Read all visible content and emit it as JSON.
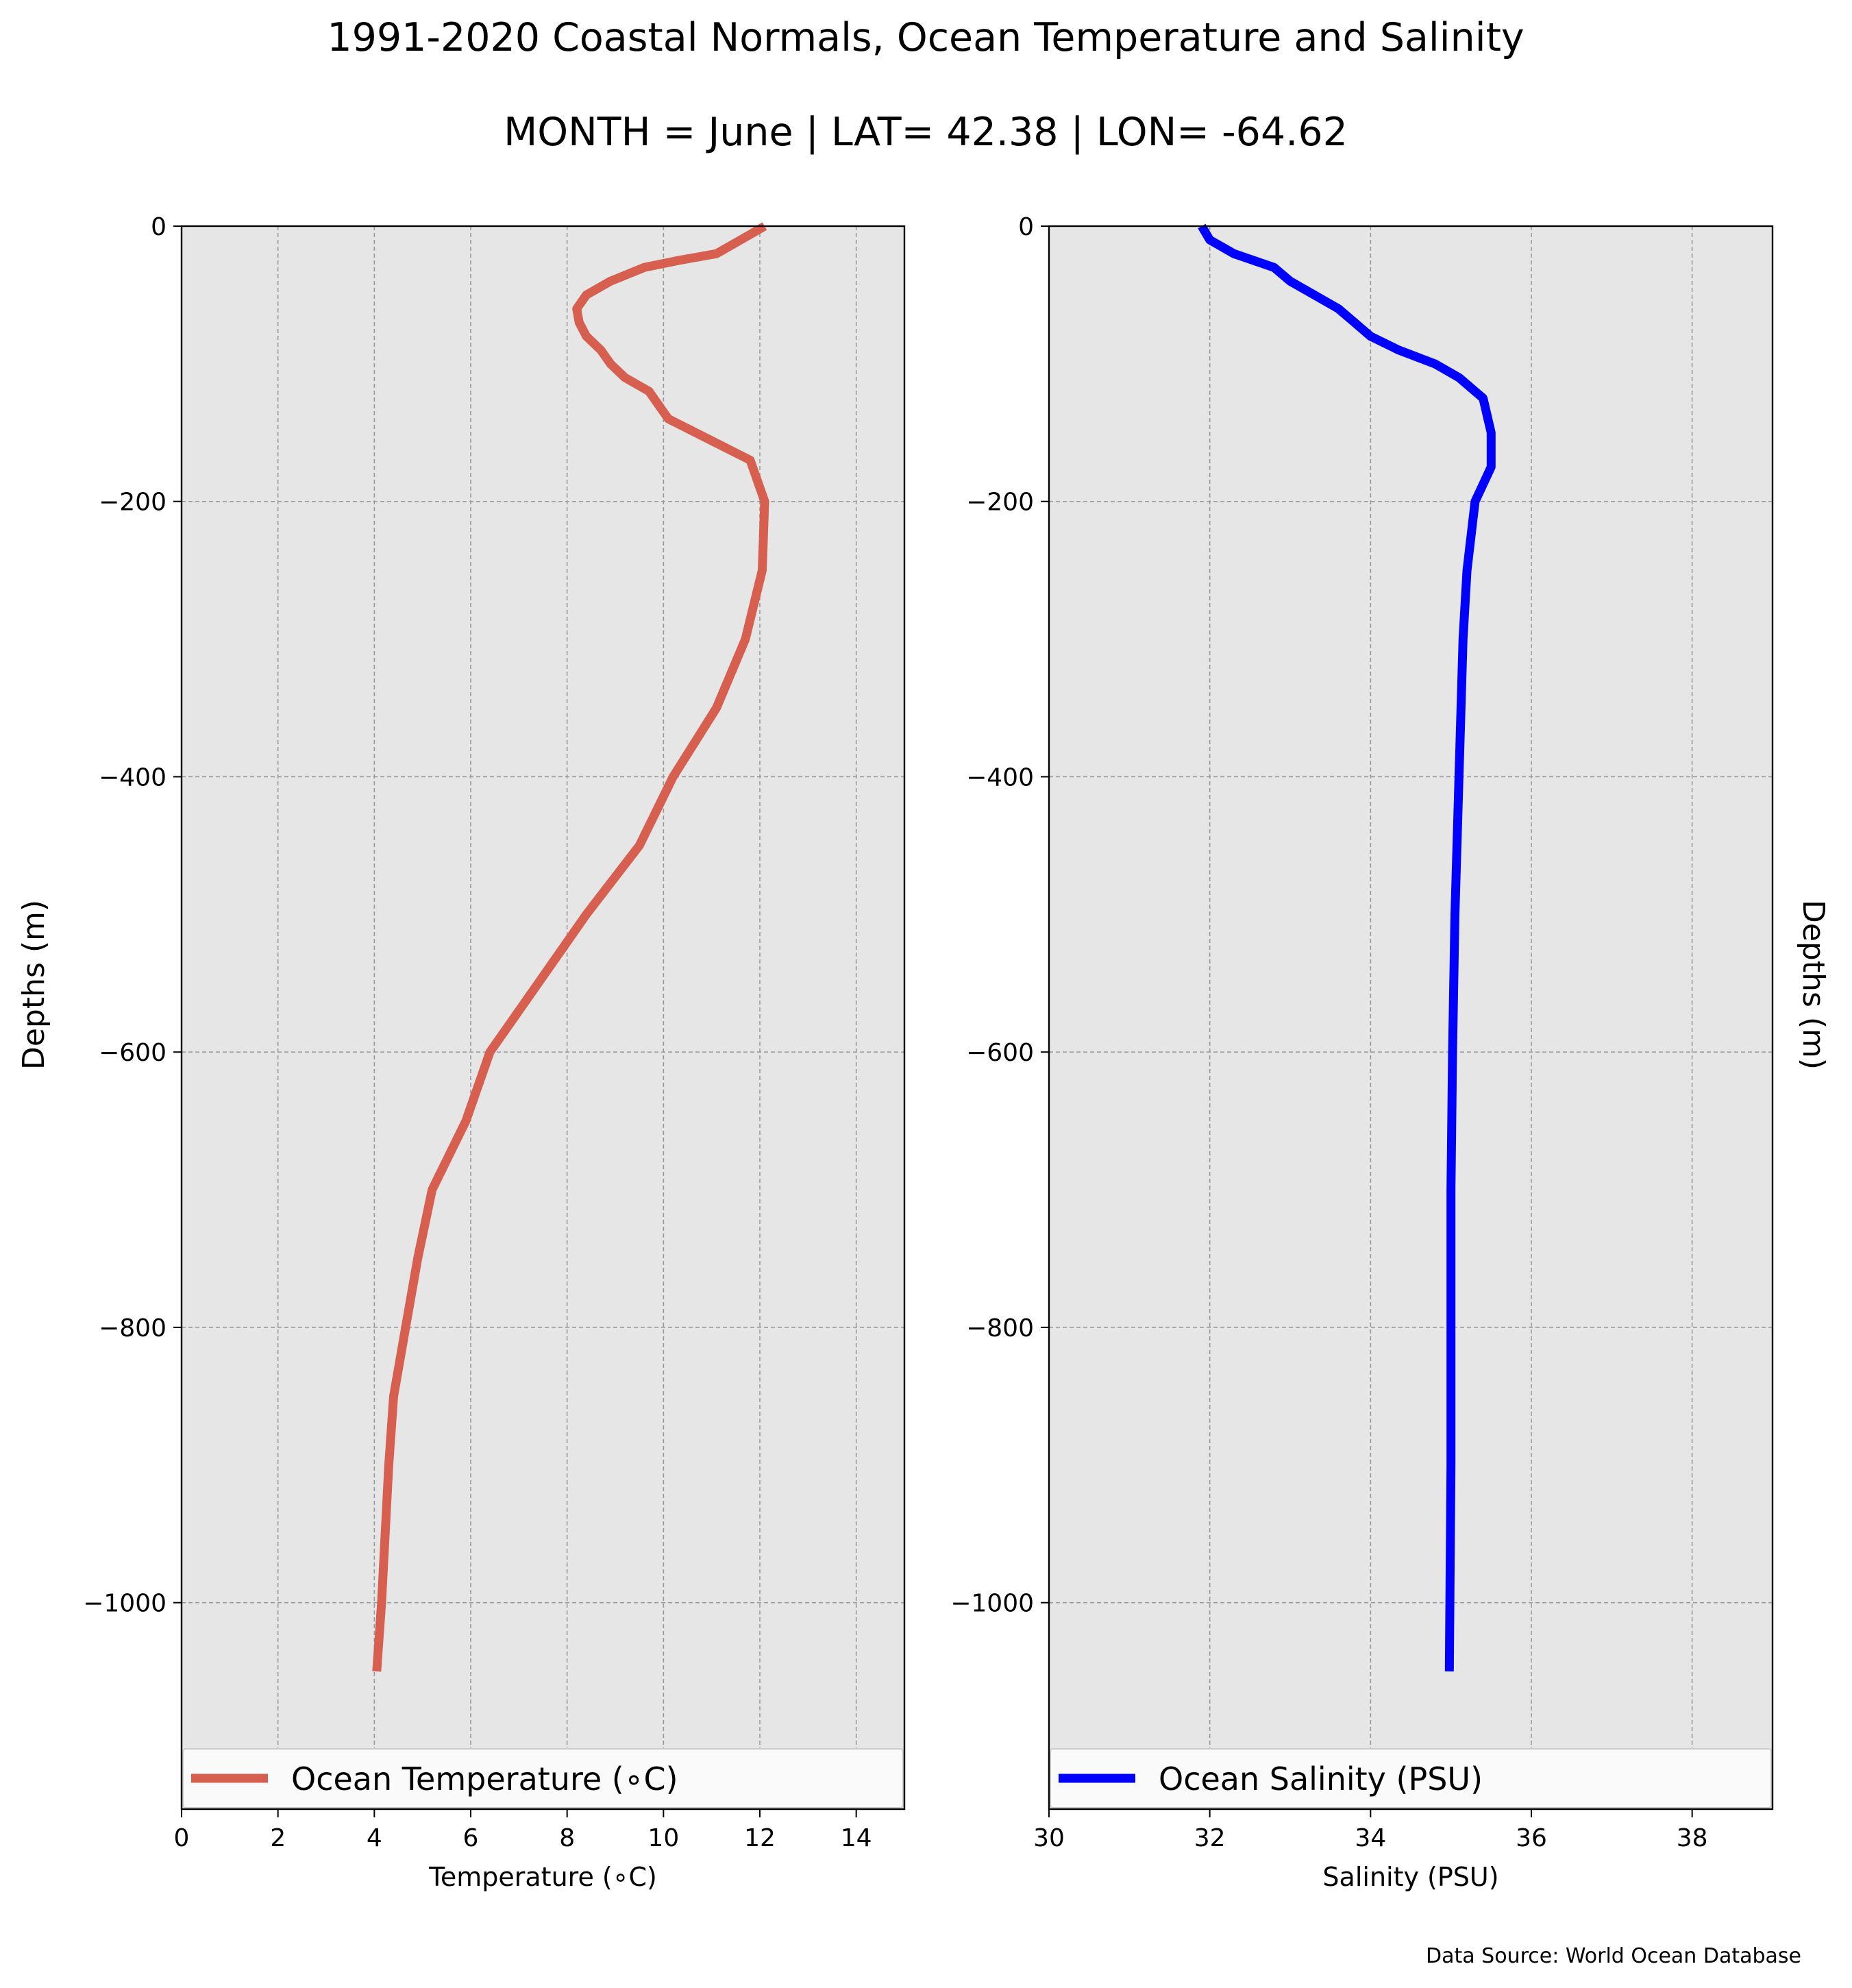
{
  "title": "1991-2020 Coastal Normals, Ocean Temperature and Salinity",
  "subtitle": "MONTH = June | LAT= 42.38 | LON= -64.62",
  "source_note": "Data Source: World Ocean Database",
  "chart_data": [
    {
      "type": "line",
      "xlabel": "Temperature (∘C)",
      "ylabel": "Depths (m)",
      "xlim": [
        0,
        15
      ],
      "ylim": [
        -1150,
        0
      ],
      "xticks": [
        "0",
        "2",
        "4",
        "6",
        "8",
        "10",
        "12",
        "14"
      ],
      "xtick_values": [
        0,
        2,
        4,
        6,
        8,
        10,
        12,
        14
      ],
      "yticks": [
        "0",
        "−200",
        "−400",
        "−600",
        "−800",
        "−1000"
      ],
      "ytick_values": [
        0,
        -200,
        -400,
        -600,
        -800,
        -1000
      ],
      "grid": true,
      "legend": "bottom",
      "color": "#d65f4f",
      "series": [
        {
          "name": "Ocean Temperature (∘C)",
          "x": [
            12.1,
            11.6,
            11.1,
            10.3,
            9.6,
            8.9,
            8.4,
            8.2,
            8.25,
            8.4,
            8.7,
            8.9,
            9.2,
            9.7,
            9.9,
            10.1,
            11.8,
            12.1,
            12.05,
            11.7,
            11.1,
            10.2,
            9.5,
            8.4,
            7.4,
            6.4,
            5.9,
            5.2,
            4.9,
            4.65,
            4.4,
            4.3,
            4.15,
            4.05
          ],
          "y": [
            0,
            -10,
            -20,
            -25,
            -30,
            -40,
            -50,
            -60,
            -70,
            -80,
            -90,
            -100,
            -110,
            -120,
            -130,
            -140,
            -170,
            -200,
            -250,
            -300,
            -350,
            -400,
            -450,
            -500,
            -550,
            -600,
            -650,
            -700,
            -750,
            -800,
            -850,
            -900,
            -1000,
            -1050
          ]
        }
      ]
    },
    {
      "type": "line",
      "xlabel": "Salinity (PSU)",
      "ylabel": "Depths (m)",
      "xlim": [
        30,
        39
      ],
      "ylim": [
        -1150,
        0
      ],
      "xticks": [
        "30",
        "32",
        "34",
        "36",
        "38"
      ],
      "xtick_values": [
        30,
        32,
        34,
        36,
        38
      ],
      "yticks": [
        "0",
        "−200",
        "−400",
        "−600",
        "−800",
        "−1000"
      ],
      "ytick_values": [
        0,
        -200,
        -400,
        -600,
        -800,
        -1000
      ],
      "grid": true,
      "legend": "bottom",
      "color": "#0000ff",
      "series": [
        {
          "name": "Ocean Salinity (PSU)",
          "x": [
            31.9,
            32.0,
            32.3,
            32.8,
            33.0,
            33.3,
            33.6,
            33.8,
            34.0,
            34.35,
            34.8,
            35.1,
            35.4,
            35.5,
            35.5,
            35.3,
            35.2,
            35.15,
            35.1,
            35.05,
            35.02,
            35.0,
            35.0,
            35.0,
            34.98
          ],
          "y": [
            0,
            -10,
            -20,
            -30,
            -40,
            -50,
            -60,
            -70,
            -80,
            -90,
            -100,
            -110,
            -125,
            -150,
            -175,
            -200,
            -250,
            -300,
            -400,
            -500,
            -600,
            -700,
            -800,
            -900,
            -1050
          ]
        }
      ]
    }
  ]
}
